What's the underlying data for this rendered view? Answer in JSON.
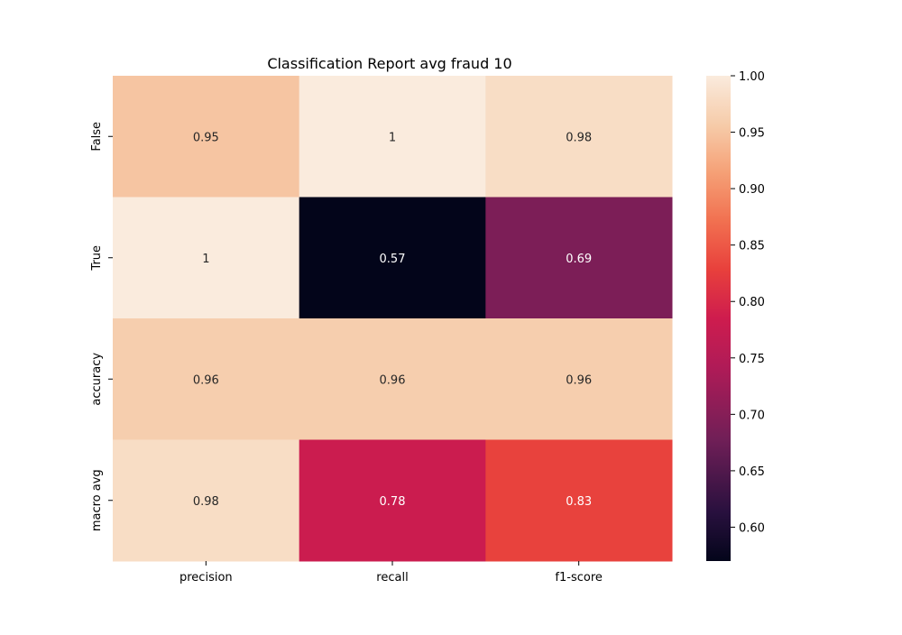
{
  "chart_data": {
    "type": "heatmap",
    "title": "Classification Report avg fraud 10",
    "xlabel": "",
    "ylabel": "",
    "x_categories": [
      "precision",
      "recall",
      "f1-score"
    ],
    "y_categories": [
      "False",
      "True",
      "accuracy",
      "macro avg"
    ],
    "values": [
      [
        0.95,
        1.0,
        0.98
      ],
      [
        1.0,
        0.57,
        0.69
      ],
      [
        0.96,
        0.96,
        0.96
      ],
      [
        0.98,
        0.78,
        0.83
      ]
    ],
    "annotations": [
      [
        "0.95",
        "1",
        "0.98"
      ],
      [
        "1",
        "0.57",
        "0.69"
      ],
      [
        "0.96",
        "0.96",
        "0.96"
      ],
      [
        "0.98",
        "0.78",
        "0.83"
      ]
    ],
    "colorbar": {
      "range": [
        0.57,
        1.0
      ],
      "ticks": [
        "0.60",
        "0.65",
        "0.70",
        "0.75",
        "0.80",
        "0.85",
        "0.90",
        "0.95",
        "1.00"
      ],
      "colormap": "rocket"
    }
  }
}
